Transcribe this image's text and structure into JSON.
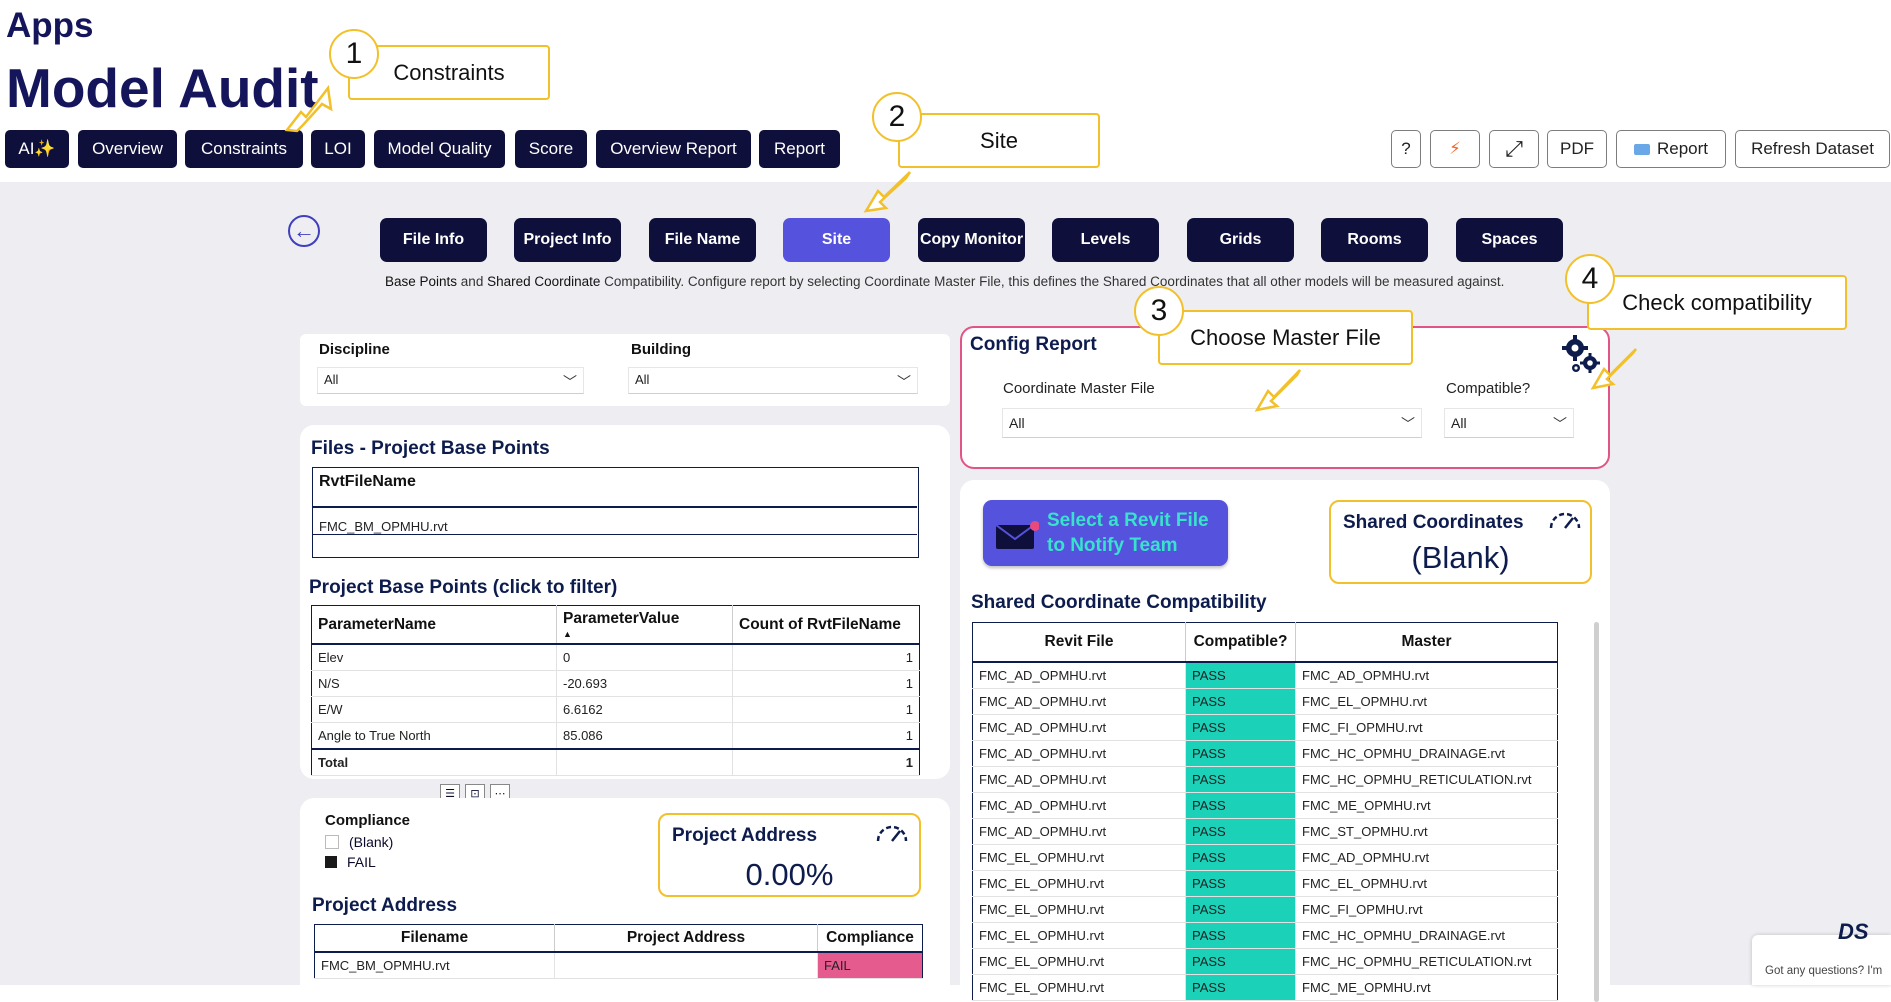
{
  "header": {
    "apps": "Apps",
    "title": "Model Audit"
  },
  "top_nav": [
    "AI✨",
    "Overview",
    "Constraints",
    "LOI",
    "Model Quality",
    "Score",
    "Overview Report",
    "Report"
  ],
  "utility": {
    "help": "?",
    "bolt": "⚡",
    "expand": "⤢",
    "pdf": "PDF",
    "report": "Report",
    "refresh": "Refresh Dataset"
  },
  "tabs": [
    "File Info",
    "Project Info",
    "File Name",
    "Site",
    "Copy Monitor",
    "Levels",
    "Grids",
    "Rooms",
    "Spaces"
  ],
  "active_tab": "Site",
  "subtitle": "Base Points and Shared Coordinate Compatibility. Configure report by selecting Coordinate Master File, this defines the Shared Coordinates that all other models will be measured against.",
  "filters": {
    "discipline_label": "Discipline",
    "discipline_value": "All",
    "building_label": "Building",
    "building_value": "All"
  },
  "files_base_points": {
    "title": "Files - Project Base Points",
    "column": "RvtFileName",
    "rows": [
      "FMC_BM_OPMHU.rvt"
    ]
  },
  "pbp": {
    "title": "Project Base Points (click to filter)",
    "columns": [
      "ParameterName",
      "ParameterValue",
      "Count of RvtFileName"
    ],
    "rows": [
      [
        "Elev",
        "0",
        "1"
      ],
      [
        "N/S",
        "-20.693",
        "1"
      ],
      [
        "E/W",
        "6.6162",
        "1"
      ],
      [
        "Angle to True North",
        "85.086",
        "1"
      ]
    ],
    "total": [
      "Total",
      "",
      "1"
    ]
  },
  "compliance": {
    "title": "Compliance",
    "items": [
      "(Blank)",
      "FAIL"
    ]
  },
  "project_address_kpi": {
    "title": "Project Address",
    "value": "0.00%"
  },
  "project_address": {
    "title": "Project Address",
    "columns": [
      "Filename",
      "Project Address",
      "Compliance"
    ],
    "rows": [
      [
        "FMC_BM_OPMHU.rvt",
        "",
        "FAIL"
      ]
    ]
  },
  "config": {
    "title": "Config Report",
    "master_label": "Coordinate Master File",
    "master_value": "All",
    "compat_label": "Compatible?",
    "compat_value": "All"
  },
  "notify": {
    "line1": "Select a Revit File",
    "line2": "to Notify Team"
  },
  "shared_kpi": {
    "title": "Shared Coordinates",
    "value": "(Blank)"
  },
  "compat_table": {
    "title": "Shared Coordinate Compatibility",
    "columns": [
      "Revit File",
      "Compatible?",
      "Master"
    ],
    "rows": [
      [
        "FMC_AD_OPMHU.rvt",
        "PASS",
        "FMC_AD_OPMHU.rvt"
      ],
      [
        "FMC_AD_OPMHU.rvt",
        "PASS",
        "FMC_EL_OPMHU.rvt"
      ],
      [
        "FMC_AD_OPMHU.rvt",
        "PASS",
        "FMC_FI_OPMHU.rvt"
      ],
      [
        "FMC_AD_OPMHU.rvt",
        "PASS",
        "FMC_HC_OPMHU_DRAINAGE.rvt"
      ],
      [
        "FMC_AD_OPMHU.rvt",
        "PASS",
        "FMC_HC_OPMHU_RETICULATION.rvt"
      ],
      [
        "FMC_AD_OPMHU.rvt",
        "PASS",
        "FMC_ME_OPMHU.rvt"
      ],
      [
        "FMC_AD_OPMHU.rvt",
        "PASS",
        "FMC_ST_OPMHU.rvt"
      ],
      [
        "FMC_EL_OPMHU.rvt",
        "PASS",
        "FMC_AD_OPMHU.rvt"
      ],
      [
        "FMC_EL_OPMHU.rvt",
        "PASS",
        "FMC_EL_OPMHU.rvt"
      ],
      [
        "FMC_EL_OPMHU.rvt",
        "PASS",
        "FMC_FI_OPMHU.rvt"
      ],
      [
        "FMC_EL_OPMHU.rvt",
        "PASS",
        "FMC_HC_OPMHU_DRAINAGE.rvt"
      ],
      [
        "FMC_EL_OPMHU.rvt",
        "PASS",
        "FMC_HC_OPMHU_RETICULATION.rvt"
      ],
      [
        "FMC_EL_OPMHU.rvt",
        "PASS",
        "FMC_ME_OPMHU.rvt"
      ]
    ]
  },
  "callouts": [
    {
      "num": "1",
      "text": "Constraints"
    },
    {
      "num": "2",
      "text": "Site"
    },
    {
      "num": "3",
      "text": "Choose Master File"
    },
    {
      "num": "4",
      "text": "Check compatibility"
    }
  ],
  "chat": {
    "logo": "DS",
    "text": "Got any questions? I'm"
  },
  "colors": {
    "navy": "#0e0f3a",
    "active": "#5552dd",
    "callout": "#f2c02a",
    "pass": "#1bd1b8",
    "fail": "#e55b8e",
    "config_border": "#e05585"
  }
}
